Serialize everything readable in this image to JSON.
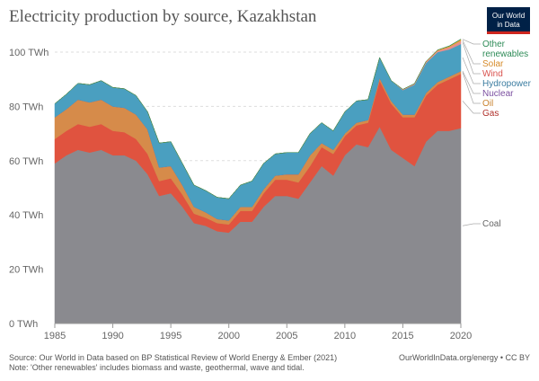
{
  "title": "Electricity production by source, Kazakhstan",
  "logo": {
    "line1": "Our World",
    "line2": "in Data"
  },
  "footer": {
    "source": "Source: Our World in Data based on BP Statistical Review of World Energy & Ember (2021)",
    "note": "Note: 'Other renewables' includes biomass and waste, geothermal, wave and tidal.",
    "url": "OurWorldInData.org/energy • CC BY"
  },
  "chart_data": {
    "type": "area",
    "stacked": true,
    "x": [
      1985,
      1986,
      1987,
      1988,
      1989,
      1990,
      1991,
      1992,
      1993,
      1994,
      1995,
      1996,
      1997,
      1998,
      1999,
      2000,
      2001,
      2002,
      2003,
      2004,
      2005,
      2006,
      2007,
      2008,
      2009,
      2010,
      2011,
      2012,
      2013,
      2014,
      2015,
      2016,
      2017,
      2018,
      2019,
      2020
    ],
    "ylim": [
      0,
      100
    ],
    "yticks": [
      0,
      20,
      40,
      60,
      80,
      100
    ],
    "ytick_labels": [
      "0 TWh",
      "20 TWh",
      "40 TWh",
      "60 TWh",
      "80 TWh",
      "100 TWh"
    ],
    "xticks": [
      1985,
      1990,
      1995,
      2000,
      2005,
      2010,
      2015,
      2020
    ],
    "grid": true,
    "legend_position": "right",
    "series": [
      {
        "name": "Coal",
        "color": "#8a8a8f",
        "values": [
          59,
          62,
          64,
          63,
          64,
          62,
          62,
          60,
          55,
          47,
          48,
          43,
          37,
          36,
          34,
          33.5,
          37.5,
          37.5,
          43,
          47,
          47,
          46,
          52,
          58,
          54.5,
          62,
          66,
          65,
          72.5,
          64,
          61,
          58,
          67,
          71,
          71,
          72
        ]
      },
      {
        "name": "Gas",
        "color": "#e0533f",
        "values": [
          9,
          9,
          9.5,
          9.5,
          9.5,
          9,
          8.5,
          8,
          7.5,
          5.5,
          5.5,
          4.5,
          3.5,
          3,
          3,
          3,
          4,
          4,
          5,
          6,
          6,
          6,
          6,
          7,
          8,
          7,
          7,
          9,
          17,
          17,
          15,
          18,
          17,
          17,
          19,
          20
        ]
      },
      {
        "name": "Oil",
        "color": "#d68b4a",
        "values": [
          8,
          8,
          9,
          9,
          9,
          9,
          9,
          9,
          9,
          5,
          4.5,
          3.5,
          2.5,
          2,
          1.5,
          1.5,
          1.5,
          1.5,
          1.5,
          1.5,
          2,
          3,
          4,
          1.5,
          1.5,
          1,
          1,
          1,
          1,
          1,
          1,
          1,
          1,
          1,
          1,
          1
        ]
      },
      {
        "name": "Nuclear",
        "color": "#7b4fa0",
        "values": [
          0,
          0,
          0,
          0,
          0,
          0,
          0,
          0,
          0,
          0,
          0,
          0,
          0,
          0,
          0,
          0,
          0,
          0,
          0,
          0,
          0,
          0,
          0,
          0,
          0,
          0,
          0,
          0,
          0,
          0,
          0,
          0,
          0,
          0,
          0,
          0
        ]
      },
      {
        "name": "Hydropower",
        "color": "#4a9fc0",
        "values": [
          5,
          5.5,
          6,
          6.5,
          7,
          7,
          7,
          7,
          6.5,
          9,
          9,
          8,
          8,
          8,
          8,
          8,
          8,
          9.5,
          9.5,
          8,
          8,
          8,
          8,
          7.5,
          7,
          8,
          8,
          7.5,
          7.5,
          7.5,
          9,
          11,
          11,
          11,
          10,
          10
        ]
      },
      {
        "name": "Wind",
        "color": "#e58e8e",
        "values": [
          0,
          0,
          0,
          0,
          0,
          0,
          0,
          0,
          0,
          0,
          0,
          0,
          0,
          0,
          0,
          0,
          0,
          0,
          0,
          0,
          0,
          0,
          0,
          0,
          0,
          0,
          0,
          0,
          0,
          0,
          0.2,
          0.3,
          0.4,
          0.5,
          0.8,
          1.1
        ]
      },
      {
        "name": "Solar",
        "color": "#e8a23a",
        "values": [
          0,
          0,
          0,
          0,
          0,
          0,
          0,
          0,
          0,
          0,
          0,
          0,
          0,
          0,
          0,
          0,
          0,
          0,
          0,
          0,
          0,
          0,
          0,
          0,
          0,
          0,
          0,
          0,
          0,
          0,
          0.1,
          0.1,
          0.2,
          0.3,
          0.4,
          0.6
        ]
      },
      {
        "name": "Other renewables",
        "color": "#2e8b57",
        "values": [
          0,
          0,
          0,
          0,
          0,
          0,
          0,
          0,
          0,
          0,
          0,
          0,
          0,
          0,
          0,
          0,
          0,
          0,
          0,
          0,
          0,
          0,
          0,
          0,
          0,
          0,
          0,
          0,
          0,
          0,
          0,
          0,
          0,
          0,
          0.1,
          0.1
        ]
      }
    ],
    "legend_colors": {
      "Other renewables": "#2e8b57",
      "Solar": "#d68b2a",
      "Wind": "#d9534f",
      "Hydropower": "#3a7ca0",
      "Nuclear": "#7b4fa0",
      "Oil": "#c9822f",
      "Gas": "#b0302a",
      "Coal": "#666666"
    }
  }
}
